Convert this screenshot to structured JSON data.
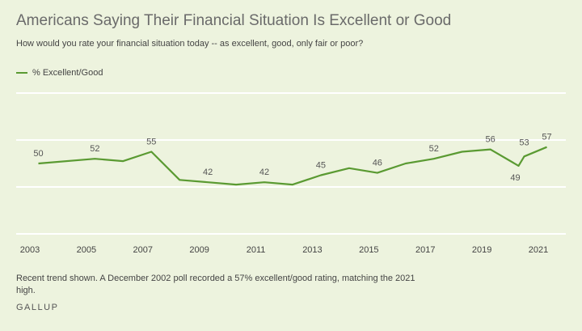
{
  "title": "Americans Saying Their Financial Situation Is Excellent or Good",
  "subtitle": "How would you rate your financial situation today -- as excellent, good, only fair or poor?",
  "note": "Recent trend shown. A December 2002 poll recorded a 57% excellent/good rating, matching the 2021 high.",
  "brand": "GALLUP",
  "colors": {
    "line": "#5a9a32",
    "grid": "#ffffff",
    "text": "#555555"
  },
  "chart_data": {
    "type": "line",
    "series": [
      {
        "name": "% Excellent/Good",
        "points": [
          {
            "x": 2003.3,
            "y": 50,
            "label": "50"
          },
          {
            "x": 2005.3,
            "y": 52,
            "label": "52"
          },
          {
            "x": 2006.3,
            "y": 51
          },
          {
            "x": 2007.3,
            "y": 55,
            "label": "55"
          },
          {
            "x": 2008.3,
            "y": 43
          },
          {
            "x": 2009.3,
            "y": 42,
            "label": "42"
          },
          {
            "x": 2010.3,
            "y": 41
          },
          {
            "x": 2011.3,
            "y": 42,
            "label": "42"
          },
          {
            "x": 2012.3,
            "y": 41
          },
          {
            "x": 2013.3,
            "y": 45,
            "label": "45"
          },
          {
            "x": 2014.3,
            "y": 48
          },
          {
            "x": 2015.3,
            "y": 46,
            "label": "46"
          },
          {
            "x": 2016.3,
            "y": 50
          },
          {
            "x": 2017.3,
            "y": 52,
            "label": "52"
          },
          {
            "x": 2018.3,
            "y": 55
          },
          {
            "x": 2019.3,
            "y": 56,
            "label": "56"
          },
          {
            "x": 2020.3,
            "y": 49,
            "label": "49"
          },
          {
            "x": 2020.5,
            "y": 53,
            "label": "53"
          },
          {
            "x": 2021.3,
            "y": 57,
            "label": "57"
          }
        ]
      }
    ],
    "x_ticks": [
      "2003",
      "2005",
      "2007",
      "2009",
      "2011",
      "2013",
      "2015",
      "2017",
      "2019",
      "2021"
    ],
    "xlim": [
      2002.8,
      2021.8
    ],
    "ylim": [
      20,
      80
    ],
    "y_gridlines": [
      20,
      40,
      60,
      80
    ],
    "legend": "top-left",
    "grid": true
  }
}
